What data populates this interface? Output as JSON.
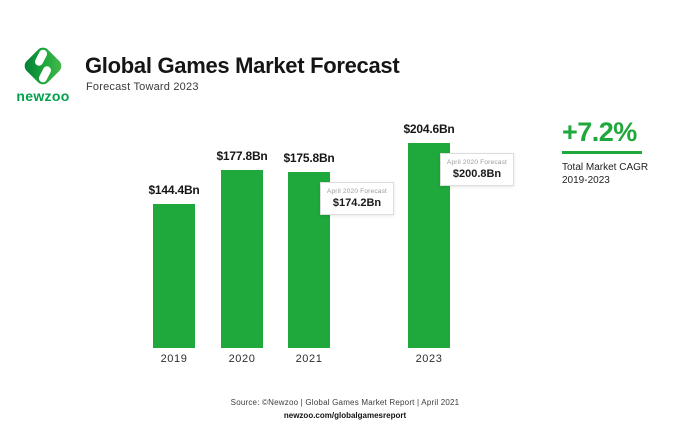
{
  "header": {
    "title": "Global Games Market Forecast",
    "subtitle": "Forecast Toward 2023"
  },
  "brand": {
    "wordmark": "newzoo"
  },
  "chart_data": {
    "type": "bar",
    "title": "Global Games Market Forecast",
    "subtitle": "Forecast Toward 2023",
    "unit": "USD billions",
    "categories": [
      "2019",
      "2020",
      "2021",
      "2023"
    ],
    "values": [
      144.4,
      177.8,
      175.8,
      204.6
    ],
    "value_labels": [
      "$144.4Bn",
      "$177.8Bn",
      "$175.8Bn",
      "$204.6Bn"
    ],
    "bar_color": "#1FA83C",
    "ylim": [
      0,
      210
    ],
    "grid": false,
    "legend": "none",
    "callouts": [
      {
        "bar_index": 2,
        "label": "April 2020 Forecast",
        "value": "$174.2Bn"
      },
      {
        "bar_index": 3,
        "label": "April 2020 Forecast",
        "value": "$200.8Bn"
      }
    ]
  },
  "cagr": {
    "value": "+7.2%",
    "caption_line1": "Total Market CAGR",
    "caption_line2": "2019-2023"
  },
  "footer": {
    "source": "Source: ©Newzoo | Global Games Market Report | April 2021",
    "url": "newzoo.com/globalgamesreport"
  },
  "colors": {
    "green": "#1FA83C",
    "wordmark_green": "#00A14B",
    "logo_dark_green": "#007A38",
    "logo_light_green": "#4CBB4E",
    "text_dark": "#151515",
    "callout_label_gray": "#9B9B9B",
    "callout_border": "#DDDDDD"
  }
}
